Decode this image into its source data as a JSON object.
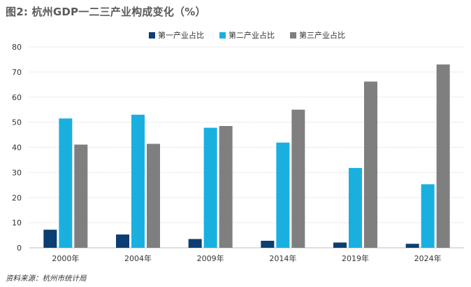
{
  "title": "图2: 杭州GDP一二三产业构成变化（%）",
  "source": "资料来源：杭州市统计局",
  "chart_data": {
    "type": "bar",
    "categories": [
      "2000年",
      "2004年",
      "2009年",
      "2014年",
      "2019年",
      "2024年"
    ],
    "series": [
      {
        "name": "第一产业占比",
        "color": "#0b3e72",
        "values": [
          7.2,
          5.3,
          3.5,
          2.8,
          2.1,
          1.6
        ]
      },
      {
        "name": "第二产业占比",
        "color": "#19b0e0",
        "values": [
          51.5,
          53.0,
          47.8,
          41.9,
          31.8,
          25.3
        ]
      },
      {
        "name": "第三产业占比",
        "color": "#7f7f80",
        "values": [
          41.1,
          41.4,
          48.5,
          55.0,
          66.2,
          73.0
        ]
      }
    ],
    "yticks": [
      "0",
      "10",
      "20",
      "30",
      "40",
      "50",
      "60",
      "70",
      "80"
    ],
    "ylim": [
      0,
      80
    ],
    "grid": true,
    "legend_position": "top"
  }
}
